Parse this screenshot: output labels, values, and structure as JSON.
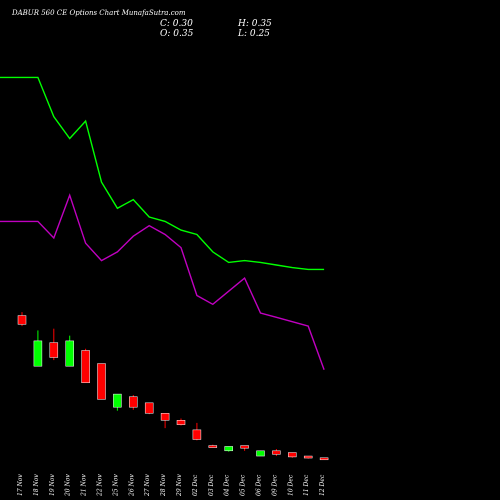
{
  "header": {
    "title": "DABUR 560  CE Options  Chart MunafaSutra.com",
    "close": "C: 0.30",
    "open": "O: 0.35",
    "high": "H: 0.35",
    "low": "L: 0.25"
  },
  "colors": {
    "background": "#000000",
    "up_candle": "#00ff00",
    "down_candle": "#ff0000",
    "green_line": "#00ff00",
    "magenta_line": "#c000c0",
    "text": "#ffffff"
  },
  "chart_data": {
    "type": "candlestick",
    "title": "DABUR 560  CE Options  Chart MunafaSutra.com",
    "categories": [
      "17 Nov",
      "18 Nov",
      "19 Nov",
      "20 Nov",
      "21 Nov",
      "22 Nov",
      "25 Nov",
      "26 Nov",
      "27 Nov",
      "28 Nov",
      "29 Nov",
      "02 Dec",
      "03 Dec",
      "04 Dec",
      "05 Dec",
      "06 Dec",
      "09 Dec",
      "10 Dec",
      "11 Dec",
      "12 Dec"
    ],
    "candles": [
      {
        "open": 8.7,
        "close": 7.7,
        "high": 9.1,
        "low": 7.5,
        "direction": "down"
      },
      {
        "open": 2.9,
        "close": 5.8,
        "high": 7.0,
        "low": 2.9,
        "direction": "up"
      },
      {
        "open": 5.6,
        "close": 3.9,
        "high": 7.2,
        "low": 3.6,
        "direction": "down"
      },
      {
        "open": 2.9,
        "close": 5.8,
        "high": 6.4,
        "low": 2.9,
        "direction": "up"
      },
      {
        "open": 4.7,
        "close": 1.0,
        "high": 4.9,
        "low": 1.0,
        "direction": "down"
      },
      {
        "open": 3.2,
        "close": -0.9,
        "high": 3.2,
        "low": -0.9,
        "direction": "down"
      },
      {
        "open": -1.8,
        "close": -0.3,
        "high": -0.3,
        "low": -2.2,
        "direction": "up"
      },
      {
        "open": -0.6,
        "close": -1.8,
        "high": -0.4,
        "low": -2.1,
        "direction": "down"
      },
      {
        "open": -1.3,
        "close": -2.5,
        "high": -1.3,
        "low": -2.6,
        "direction": "down"
      },
      {
        "open": -2.5,
        "close": -3.3,
        "high": -2.5,
        "low": -4.2,
        "direction": "down"
      },
      {
        "open": -3.3,
        "close": -3.8,
        "high": -3.1,
        "low": -3.9,
        "direction": "down"
      },
      {
        "open": -4.4,
        "close": -5.5,
        "high": -3.6,
        "low": -5.6,
        "direction": "down"
      },
      {
        "open": -6.2,
        "close": -6.4,
        "high": -6.1,
        "low": -6.4,
        "direction": "down"
      },
      {
        "open": -6.8,
        "close": -6.3,
        "high": -6.3,
        "low": -6.9,
        "direction": "up"
      },
      {
        "open": -6.2,
        "close": -6.5,
        "high": -6.2,
        "low": -6.8,
        "direction": "down"
      },
      {
        "open": -7.4,
        "close": -6.8,
        "high": -6.8,
        "low": -7.4,
        "direction": "up"
      },
      {
        "open": -6.8,
        "close": -7.2,
        "high": -6.6,
        "low": -7.4,
        "direction": "down"
      },
      {
        "open": -7.0,
        "close": -7.5,
        "high": -7.0,
        "low": -7.6,
        "direction": "down"
      },
      {
        "open": -7.4,
        "close": -7.6,
        "high": -7.4,
        "low": -7.7,
        "direction": "down"
      },
      {
        "open": -7.6,
        "close": -7.6,
        "high": -7.6,
        "low": -7.6,
        "direction": "down"
      }
    ],
    "series": [
      {
        "values": [
          36.0,
          36.0,
          31.5,
          29.0,
          31.0,
          24.0,
          21.0,
          22.0,
          20.0,
          19.5,
          18.5,
          18.0,
          16.0,
          14.8,
          15.0,
          14.8,
          14.5,
          14.2,
          14.0,
          14.0
        ]
      },
      {
        "values": [
          19.5,
          19.5,
          17.6,
          22.5,
          17.0,
          15.0,
          16.0,
          17.8,
          19.0,
          18.0,
          16.5,
          11.0,
          10.0,
          11.5,
          13.0,
          9.0,
          8.5,
          8.0,
          7.5,
          2.5
        ]
      }
    ],
    "ylim": [
      -9,
      38
    ],
    "grid": false,
    "legend": "none"
  }
}
